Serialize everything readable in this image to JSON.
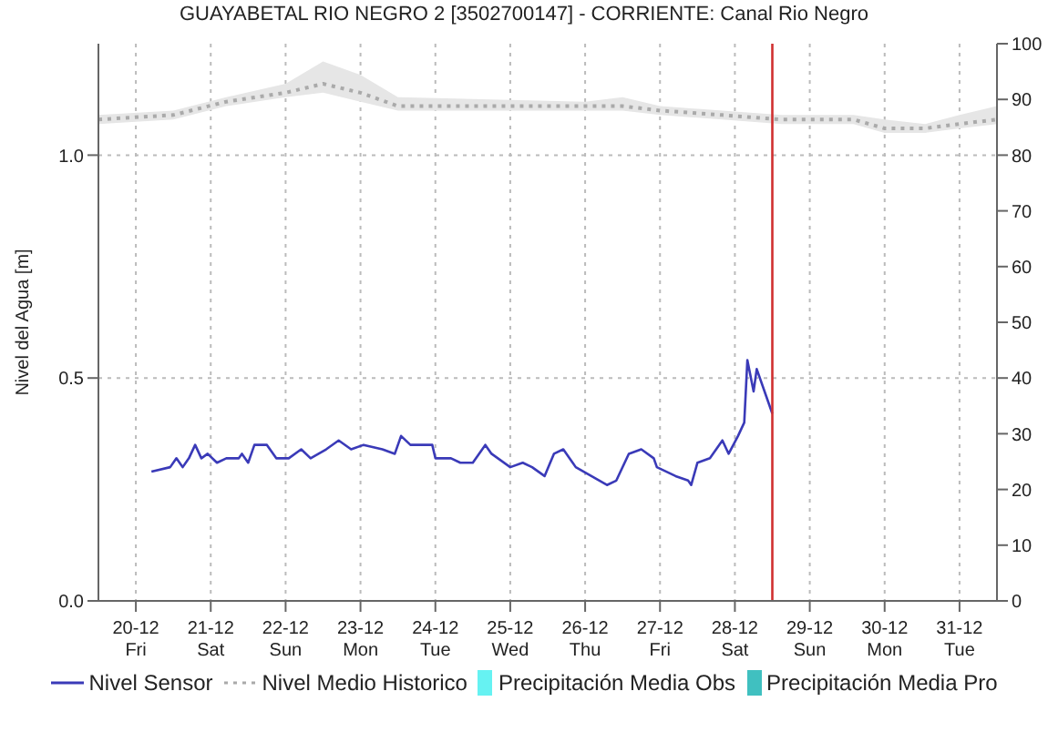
{
  "chart_data": {
    "type": "line",
    "title": "GUAYABETAL RIO NEGRO 2 [3502700147] - CORRIENTE: Canal Rio Negro",
    "ylabel": "Nivel del Agua [m]",
    "xlim": [
      "--12-19T12:00",
      "--12-31T12:00"
    ],
    "xticks": [
      {
        "value": "--12-20",
        "label": "20-12\nFri"
      },
      {
        "value": "--12-21",
        "label": "21-12\nSat"
      },
      {
        "value": "--12-22",
        "label": "22-12\nSun"
      },
      {
        "value": "--12-23",
        "label": "23-12\nMon"
      },
      {
        "value": "--12-24",
        "label": "24-12\nTue"
      },
      {
        "value": "--12-25",
        "label": "25-12\nWed"
      },
      {
        "value": "--12-26",
        "label": "26-12\nThu"
      },
      {
        "value": "--12-27",
        "label": "27-12\nFri"
      },
      {
        "value": "--12-28",
        "label": "28-12\nSat"
      },
      {
        "value": "--12-29",
        "label": "29-12\nSun"
      },
      {
        "value": "--12-30",
        "label": "30-12\nMon"
      },
      {
        "value": "--12-31",
        "label": "31-12\nTue"
      }
    ],
    "ylim": [
      0,
      1.25
    ],
    "yticks": [
      {
        "value": 0,
        "label": "0.0"
      },
      {
        "value": 0.5,
        "label": "0.5"
      },
      {
        "value": 1,
        "label": "1.0"
      }
    ],
    "y2lim": [
      0,
      100
    ],
    "y2ticks": [
      0,
      10,
      20,
      30,
      40,
      50,
      60,
      70,
      80,
      90,
      100
    ],
    "grid": true,
    "legend": "bottom",
    "ref_lines": [
      {
        "axis": "x",
        "value": "--12-28T12:00",
        "color": "#d03030"
      }
    ],
    "series": [
      {
        "name": "Nivel Sensor",
        "color": "#3a3ab8",
        "line_style": "solid",
        "x": [
          "--12-20T05:00",
          "--12-20T11:00",
          "--12-20T13:00",
          "--12-20T15:00",
          "--12-20T17:00",
          "--12-20T19:00",
          "--12-20T21:00",
          "--12-20T23:00",
          "--12-21T02:00",
          "--12-21T05:00",
          "--12-21T09:00",
          "--12-21T10:00",
          "--12-21T12:00",
          "--12-21T14:00",
          "--12-21T18:00",
          "--12-21T21:00",
          "--12-22T01:00",
          "--12-22T05:00",
          "--12-22T08:00",
          "--12-22T13:00",
          "--12-22T17:00",
          "--12-22T21:00",
          "--12-23T01:00",
          "--12-23T07:00",
          "--12-23T11:00",
          "--12-23T13:00",
          "--12-23T16:00",
          "--12-23T23:00",
          "--12-24T00:00",
          "--12-24T05:00",
          "--12-24T08:00",
          "--12-24T12:00",
          "--12-24T16:00",
          "--12-24T18:00",
          "--12-25T00:00",
          "--12-25T04:00",
          "--12-25T07:00",
          "--12-25T11:00",
          "--12-25T14:00",
          "--12-25T17:00",
          "--12-25T21:00",
          "--12-26T02:00",
          "--12-26T07:00",
          "--12-26T10:00",
          "--12-26T14:00",
          "--12-26T18:00",
          "--12-26T22:00",
          "--12-26T23:00",
          "--12-27T05:00",
          "--12-27T09:00",
          "--12-27T10:00",
          "--12-27T12:00",
          "--12-27T16:00",
          "--12-27T20:00",
          "--12-27T22:00",
          "--12-28T01:00",
          "--12-28T03:00",
          "--12-28T04:00",
          "--12-28T06:00",
          "--12-28T07:00",
          "--12-28T10:00",
          "--12-28T12:00"
        ],
        "values": [
          0.29,
          0.3,
          0.32,
          0.3,
          0.32,
          0.35,
          0.32,
          0.33,
          0.31,
          0.32,
          0.32,
          0.33,
          0.31,
          0.35,
          0.35,
          0.32,
          0.32,
          0.34,
          0.32,
          0.34,
          0.36,
          0.34,
          0.35,
          0.34,
          0.33,
          0.37,
          0.35,
          0.35,
          0.32,
          0.32,
          0.31,
          0.31,
          0.35,
          0.33,
          0.3,
          0.31,
          0.3,
          0.28,
          0.33,
          0.34,
          0.3,
          0.28,
          0.26,
          0.27,
          0.33,
          0.34,
          0.32,
          0.3,
          0.28,
          0.27,
          0.26,
          0.31,
          0.32,
          0.36,
          0.33,
          0.37,
          0.4,
          0.54,
          0.47,
          0.52,
          0.46,
          0.42
        ]
      },
      {
        "name": "Nivel Medio Historico",
        "color": "#aaaaaa",
        "line_style": "dotted",
        "x": [
          "--12-19T12:00",
          "--12-20T12:00",
          "--12-21T05:00",
          "--12-22T00:00",
          "--12-22T12:00",
          "--12-23T00:00",
          "--12-23T12:00",
          "--12-26T00:00",
          "--12-26T12:00",
          "--12-27T00:00",
          "--12-27T20:00",
          "--12-28T15:00",
          "--12-29T14:00",
          "--12-30T00:00",
          "--12-30T13:00",
          "--12-31T00:00",
          "--12-31T12:00"
        ],
        "values": [
          1.08,
          1.09,
          1.12,
          1.14,
          1.16,
          1.14,
          1.11,
          1.11,
          1.11,
          1.1,
          1.09,
          1.08,
          1.08,
          1.06,
          1.06,
          1.07,
          1.08
        ],
        "lower": [
          1.07,
          1.08,
          1.11,
          1.13,
          1.14,
          1.12,
          1.1,
          1.1,
          1.1,
          1.09,
          1.08,
          1.07,
          1.07,
          1.05,
          1.05,
          1.06,
          1.07
        ],
        "upper": [
          1.09,
          1.1,
          1.13,
          1.16,
          1.21,
          1.18,
          1.13,
          1.12,
          1.13,
          1.11,
          1.1,
          1.09,
          1.09,
          1.08,
          1.07,
          1.09,
          1.11
        ]
      },
      {
        "name": "Precipitación Media Obs",
        "type": "bar",
        "color": "#66f2f2"
      },
      {
        "name": "Precipitación Media Pro",
        "type": "bar",
        "color": "#40c0c0"
      }
    ]
  }
}
